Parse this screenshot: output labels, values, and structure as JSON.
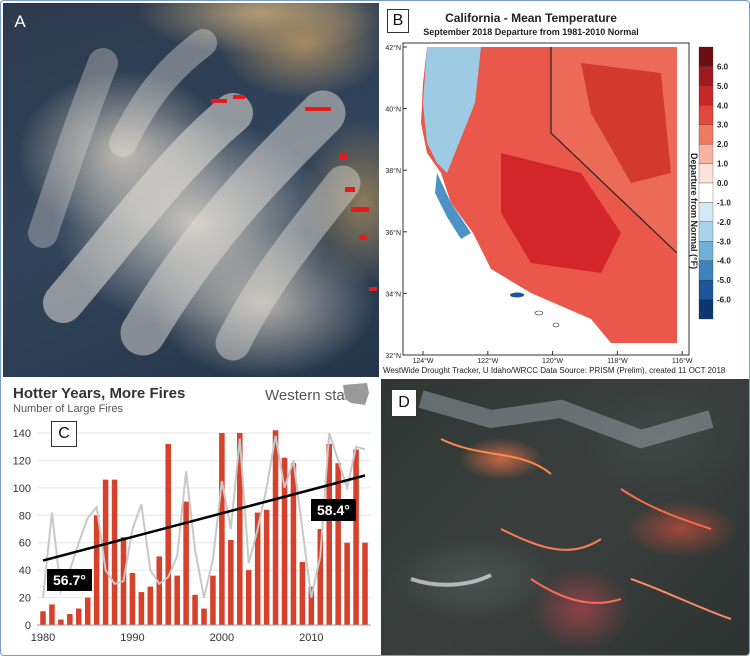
{
  "panels": {
    "a": {
      "label": "A"
    },
    "b": {
      "label": "B"
    },
    "c": {
      "label": "C"
    },
    "d": {
      "label": "D"
    }
  },
  "map": {
    "title": "California - Mean Temperature",
    "subtitle": "September 2018  Departure from 1981-2010 Normal",
    "lat_labels": [
      "42°N",
      "40°N",
      "38°N",
      "36°N",
      "34°N",
      "32°N"
    ],
    "lon_labels": [
      "124°W",
      "122°W",
      "120°W",
      "118°W",
      "116°W"
    ],
    "colorbar_title": "Departure from Normal (°F)",
    "colorbar_ticks": [
      "6.0",
      "5.0",
      "4.0",
      "3.0",
      "2.0",
      "1.0",
      "0.0",
      "-1.0",
      "-2.0",
      "-3.0",
      "-4.0",
      "-5.0",
      "-6.0"
    ],
    "colorbar_colors": [
      "#6b0d12",
      "#9e1a1e",
      "#c9282a",
      "#e2483c",
      "#ef7a62",
      "#f7b3a0",
      "#fbe3da",
      "#ffffff",
      "#d4e9f3",
      "#a8d3e8",
      "#6fb1d7",
      "#3b82bf",
      "#1d5599",
      "#0e3570"
    ],
    "credit": "WestWide Drought Tracker, U Idaho/WRCC Data Source: PRISM (Prelim), created 11 OCT 2018"
  },
  "chart": {
    "title": "Hotter Years, More Fires",
    "subtitle": "Number of Large Fires",
    "region": "Western states",
    "badge_left": "56.7°",
    "badge_right": "58.4°",
    "colors": {
      "bar": "#d6412c",
      "line": "#c8c8c8",
      "trend": "#000000"
    }
  },
  "chart_data": {
    "type": "bar",
    "title": "Hotter Years, More Fires",
    "ylabel": "Number of Large Fires",
    "ylim": [
      0,
      140
    ],
    "yticks": [
      0,
      20,
      40,
      60,
      80,
      100,
      120,
      140
    ],
    "xticks": [
      1980,
      1990,
      2000,
      2010
    ],
    "x": [
      1980,
      1981,
      1982,
      1983,
      1984,
      1985,
      1986,
      1987,
      1988,
      1989,
      1990,
      1991,
      1992,
      1993,
      1994,
      1995,
      1996,
      1997,
      1998,
      1999,
      2000,
      2001,
      2002,
      2003,
      2004,
      2005,
      2006,
      2007,
      2008,
      2009,
      2010,
      2011,
      2012,
      2013,
      2014,
      2015,
      2016
    ],
    "series": [
      {
        "values": [
          10,
          15,
          4,
          8,
          12,
          20,
          80,
          106,
          106,
          64,
          38,
          24,
          28,
          50,
          132,
          36,
          90,
          22,
          12,
          36,
          140,
          62,
          140,
          40,
          82,
          84,
          142,
          122,
          118,
          46,
          28,
          70,
          132,
          118,
          60,
          128,
          60
        ]
      }
    ],
    "temperature_line": [
      20,
      82,
      25,
      40,
      60,
      78,
      86,
      40,
      30,
      32,
      70,
      88,
      40,
      30,
      35,
      50,
      112,
      55,
      20,
      48,
      105,
      70,
      136,
      45,
      70,
      100,
      138,
      100,
      120,
      70,
      20,
      50,
      140,
      120,
      100,
      130,
      128
    ],
    "trend": {
      "start": [
        1980,
        47
      ],
      "end": [
        2016,
        109
      ]
    }
  }
}
